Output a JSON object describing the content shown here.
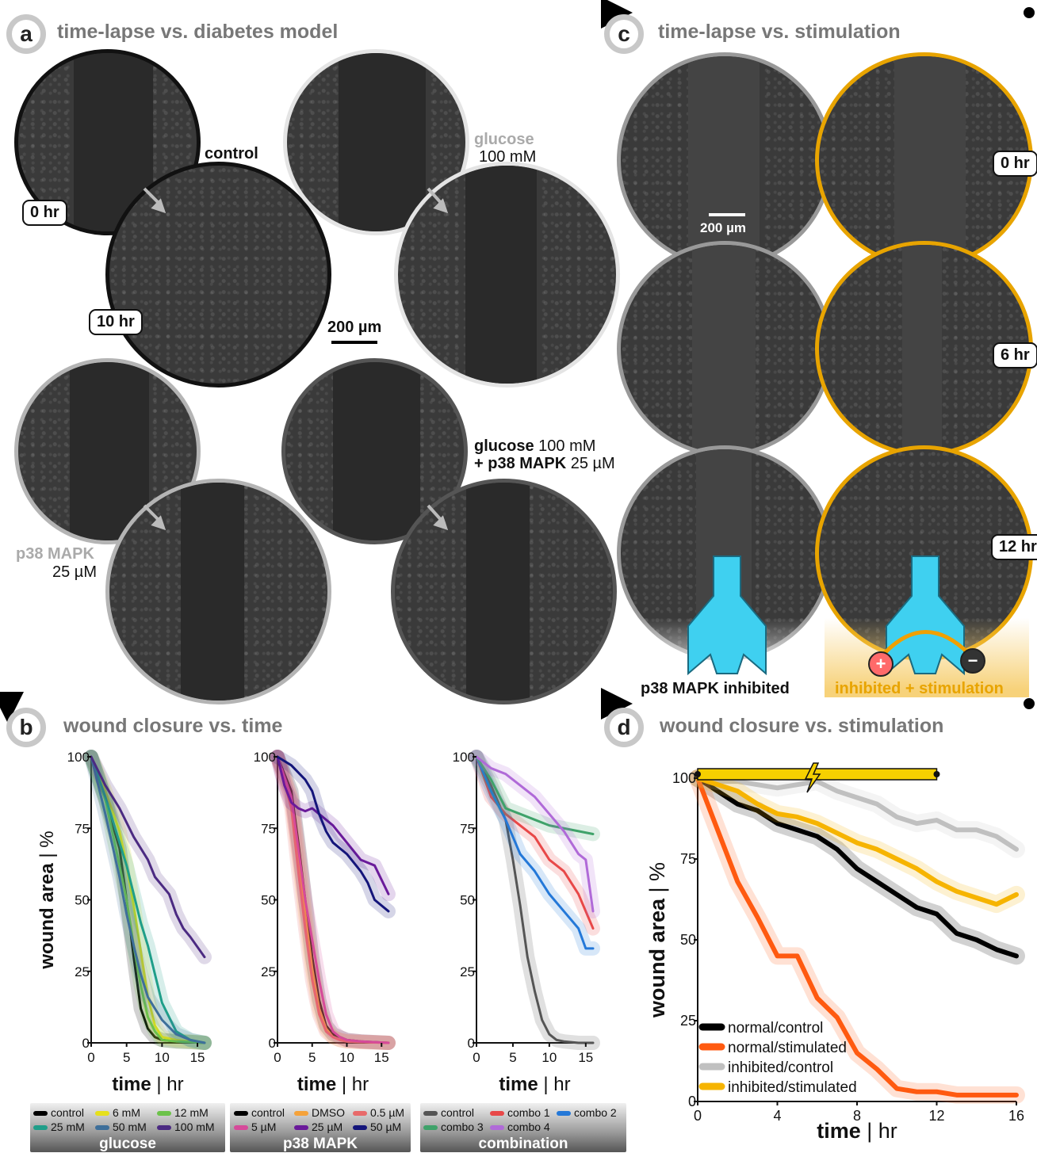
{
  "panels": {
    "a": {
      "letter": "a",
      "title": "time-lapse vs. diabetes model"
    },
    "b": {
      "letter": "b",
      "title": "wound closure vs. time"
    },
    "c": {
      "letter": "c",
      "title": "time-lapse vs. stimulation"
    },
    "d": {
      "letter": "d",
      "title": "wound closure vs. stimulation"
    }
  },
  "panel_a": {
    "t0": "0 hr",
    "t10": "10 hr",
    "control": "control",
    "glucose": "glucose",
    "glucose_conc": "100 mM",
    "p38": "p38 MAPK",
    "p38_conc": "25 µM",
    "combo_line1_bold": "glucose",
    "combo_line1": "100 mM",
    "combo_line2_bold": "+ p38 MAPK",
    "combo_line2": "25 µM",
    "scalebar": "200 µm"
  },
  "panel_c": {
    "t0": "0 hr",
    "t6": "6 hr",
    "t12": "12 hr",
    "scalebar": "200 µm",
    "left_label": "p38 MAPK inhibited",
    "right_label": "inhibited + stimulation",
    "accent": "#e8a400"
  },
  "chart_data": [
    {
      "type": "line",
      "title": "",
      "xlabel": "time | hr",
      "ylabel": "wound area | %",
      "xlim": [
        0,
        16
      ],
      "ylim": [
        0,
        100
      ],
      "xticks": [
        0,
        5,
        10,
        15
      ],
      "yticks": [
        0,
        25,
        50,
        75,
        100
      ],
      "legend_title": "glucose",
      "series": [
        {
          "name": "control",
          "color": "#000000",
          "x": [
            0,
            2,
            4,
            5,
            6,
            7,
            8,
            9,
            10,
            12,
            14,
            16
          ],
          "y": [
            100,
            85,
            68,
            50,
            30,
            12,
            5,
            2,
            1,
            0.5,
            0.3,
            0
          ]
        },
        {
          "name": "6 mM",
          "color": "#e6e01c",
          "x": [
            0,
            2,
            4,
            5,
            6,
            7,
            8,
            9,
            10,
            12,
            14,
            16
          ],
          "y": [
            100,
            88,
            74,
            62,
            48,
            32,
            16,
            6,
            2,
            1,
            0.5,
            0
          ]
        },
        {
          "name": "12 mM",
          "color": "#6cc24a",
          "x": [
            0,
            2,
            4,
            5,
            6,
            7,
            8,
            9,
            10,
            12,
            14,
            16
          ],
          "y": [
            100,
            85,
            62,
            50,
            34,
            20,
            9,
            4,
            1,
            0.5,
            0.3,
            0
          ]
        },
        {
          "name": "25 mM",
          "color": "#1f9e89",
          "x": [
            0,
            2,
            4,
            5,
            6,
            7,
            8,
            9,
            10,
            12,
            14,
            16
          ],
          "y": [
            100,
            86,
            70,
            62,
            52,
            42,
            34,
            24,
            14,
            4,
            1,
            0
          ]
        },
        {
          "name": "50 mM",
          "color": "#3e6f9a",
          "x": [
            0,
            2,
            4,
            5,
            6,
            7,
            8,
            9,
            10,
            12,
            14,
            16
          ],
          "y": [
            100,
            80,
            58,
            45,
            34,
            24,
            16,
            12,
            8,
            3,
            1,
            0
          ]
        },
        {
          "name": "100 mM",
          "color": "#4b2a82",
          "x": [
            0,
            2,
            4,
            6,
            8,
            9,
            10,
            11,
            12,
            13,
            14,
            16
          ],
          "y": [
            100,
            90,
            82,
            72,
            64,
            58,
            55,
            52,
            45,
            40,
            37,
            30
          ]
        }
      ]
    },
    {
      "type": "line",
      "title": "",
      "xlabel": "time | hr",
      "ylabel": "",
      "xlim": [
        0,
        16
      ],
      "ylim": [
        0,
        100
      ],
      "xticks": [
        0,
        5,
        10,
        15
      ],
      "yticks": [
        0,
        25,
        50,
        75,
        100
      ],
      "legend_title": "p38 MAPK",
      "series": [
        {
          "name": "control",
          "color": "#000000",
          "x": [
            0,
            2,
            3,
            4,
            5,
            6,
            7,
            8,
            9,
            10,
            12,
            16
          ],
          "y": [
            100,
            88,
            70,
            50,
            30,
            15,
            6,
            3,
            2,
            1,
            0.5,
            0
          ]
        },
        {
          "name": "DMSO",
          "color": "#f5a23a",
          "x": [
            0,
            2,
            3,
            4,
            5,
            6,
            7,
            8,
            9,
            10,
            12,
            16
          ],
          "y": [
            100,
            85,
            66,
            45,
            26,
            12,
            5,
            2,
            1,
            0.5,
            0.3,
            0
          ]
        },
        {
          "name": "0.5 µM",
          "color": "#e86a6a",
          "x": [
            0,
            2,
            3,
            4,
            5,
            6,
            7,
            8,
            9,
            10,
            12,
            16
          ],
          "y": [
            100,
            82,
            60,
            40,
            22,
            10,
            4,
            2,
            1,
            0.5,
            0.3,
            0
          ]
        },
        {
          "name": "5 µM",
          "color": "#d64a9a",
          "x": [
            0,
            2,
            3,
            4,
            5,
            6,
            7,
            8,
            9,
            10,
            12,
            16
          ],
          "y": [
            100,
            86,
            68,
            50,
            36,
            22,
            10,
            4,
            2,
            1,
            0.5,
            0
          ]
        },
        {
          "name": "25 µM",
          "color": "#6a1a9a",
          "x": [
            0,
            1,
            2,
            3,
            4,
            5,
            6,
            8,
            10,
            12,
            14,
            16
          ],
          "y": [
            100,
            90,
            84,
            82,
            81,
            82,
            80,
            76,
            70,
            64,
            62,
            52
          ]
        },
        {
          "name": "50 µM",
          "color": "#14157a",
          "x": [
            0,
            2,
            4,
            5,
            6,
            7,
            8,
            10,
            12,
            13,
            14,
            16
          ],
          "y": [
            100,
            97,
            92,
            88,
            80,
            74,
            70,
            66,
            60,
            56,
            50,
            46
          ]
        }
      ]
    },
    {
      "type": "line",
      "title": "",
      "xlabel": "time | hr",
      "ylabel": "",
      "xlim": [
        0,
        16
      ],
      "ylim": [
        0,
        100
      ],
      "xticks": [
        0,
        5,
        10,
        15
      ],
      "yticks": [
        0,
        25,
        50,
        75,
        100
      ],
      "legend_title": "combination",
      "series": [
        {
          "name": "control",
          "color": "#555555",
          "x": [
            0,
            2,
            4,
            5,
            6,
            7,
            8,
            9,
            10,
            11,
            12,
            14,
            16
          ],
          "y": [
            100,
            90,
            78,
            64,
            48,
            30,
            18,
            8,
            3,
            1,
            0.5,
            0,
            0
          ]
        },
        {
          "name": "combo 1",
          "color": "#e84848",
          "x": [
            0,
            2,
            4,
            6,
            8,
            10,
            12,
            14,
            15,
            16
          ],
          "y": [
            100,
            86,
            80,
            76,
            72,
            64,
            60,
            52,
            46,
            40
          ]
        },
        {
          "name": "combo 2",
          "color": "#2478d8",
          "x": [
            0,
            2,
            4,
            5,
            6,
            8,
            10,
            12,
            14,
            15,
            16
          ],
          "y": [
            100,
            88,
            78,
            72,
            66,
            60,
            52,
            46,
            40,
            33,
            33
          ]
        },
        {
          "name": "combo 3",
          "color": "#3fa26a",
          "x": [
            0,
            2,
            4,
            6,
            8,
            10,
            12,
            14,
            16
          ],
          "y": [
            100,
            92,
            82,
            80,
            78,
            76,
            75,
            74,
            73
          ]
        },
        {
          "name": "combo 4",
          "color": "#b06ad8",
          "x": [
            0,
            2,
            4,
            6,
            8,
            10,
            12,
            14,
            15,
            16
          ],
          "y": [
            100,
            96,
            94,
            90,
            86,
            80,
            74,
            66,
            64,
            46
          ]
        }
      ]
    },
    {
      "type": "line",
      "title": "",
      "xlabel": "time | hr",
      "ylabel": "wound area | %",
      "xlim": [
        0,
        16
      ],
      "ylim": [
        0,
        100
      ],
      "xticks": [
        0,
        4,
        8,
        12,
        16
      ],
      "yticks": [
        0,
        25,
        50,
        75,
        100
      ],
      "stimulation_window": [
        0,
        12
      ],
      "legend_position": "bottom-left",
      "series": [
        {
          "name": "normal/control",
          "color": "#000000",
          "x": [
            0,
            1,
            2,
            3,
            4,
            5,
            6,
            7,
            8,
            9,
            10,
            11,
            12,
            13,
            14,
            15,
            16
          ],
          "y": [
            100,
            96,
            92,
            90,
            86,
            84,
            82,
            78,
            72,
            68,
            64,
            60,
            58,
            52,
            50,
            47,
            45
          ]
        },
        {
          "name": "normal/stimulated",
          "color": "#ff5a10",
          "x": [
            0,
            1,
            2,
            3,
            4,
            5,
            6,
            7,
            8,
            9,
            10,
            11,
            12,
            13,
            14,
            15,
            16
          ],
          "y": [
            100,
            84,
            68,
            57,
            45,
            45,
            32,
            26,
            15,
            10,
            4,
            3,
            3,
            2,
            2,
            2,
            2
          ]
        },
        {
          "name": "inhibited/control",
          "color": "#c0c0c0",
          "x": [
            0,
            1,
            2,
            3,
            4,
            5,
            6,
            7,
            8,
            9,
            10,
            11,
            12,
            13,
            14,
            15,
            16
          ],
          "y": [
            100,
            99,
            99,
            98,
            97,
            98,
            99,
            96,
            94,
            92,
            88,
            86,
            87,
            84,
            84,
            82,
            78
          ]
        },
        {
          "name": "inhibited/stimulated",
          "color": "#f6b400",
          "x": [
            0,
            1,
            2,
            3,
            4,
            5,
            6,
            7,
            8,
            9,
            10,
            11,
            12,
            13,
            14,
            15,
            16
          ],
          "y": [
            100,
            98,
            96,
            92,
            89,
            88,
            86,
            83,
            80,
            78,
            75,
            72,
            68,
            65,
            63,
            61,
            64
          ]
        }
      ]
    }
  ]
}
